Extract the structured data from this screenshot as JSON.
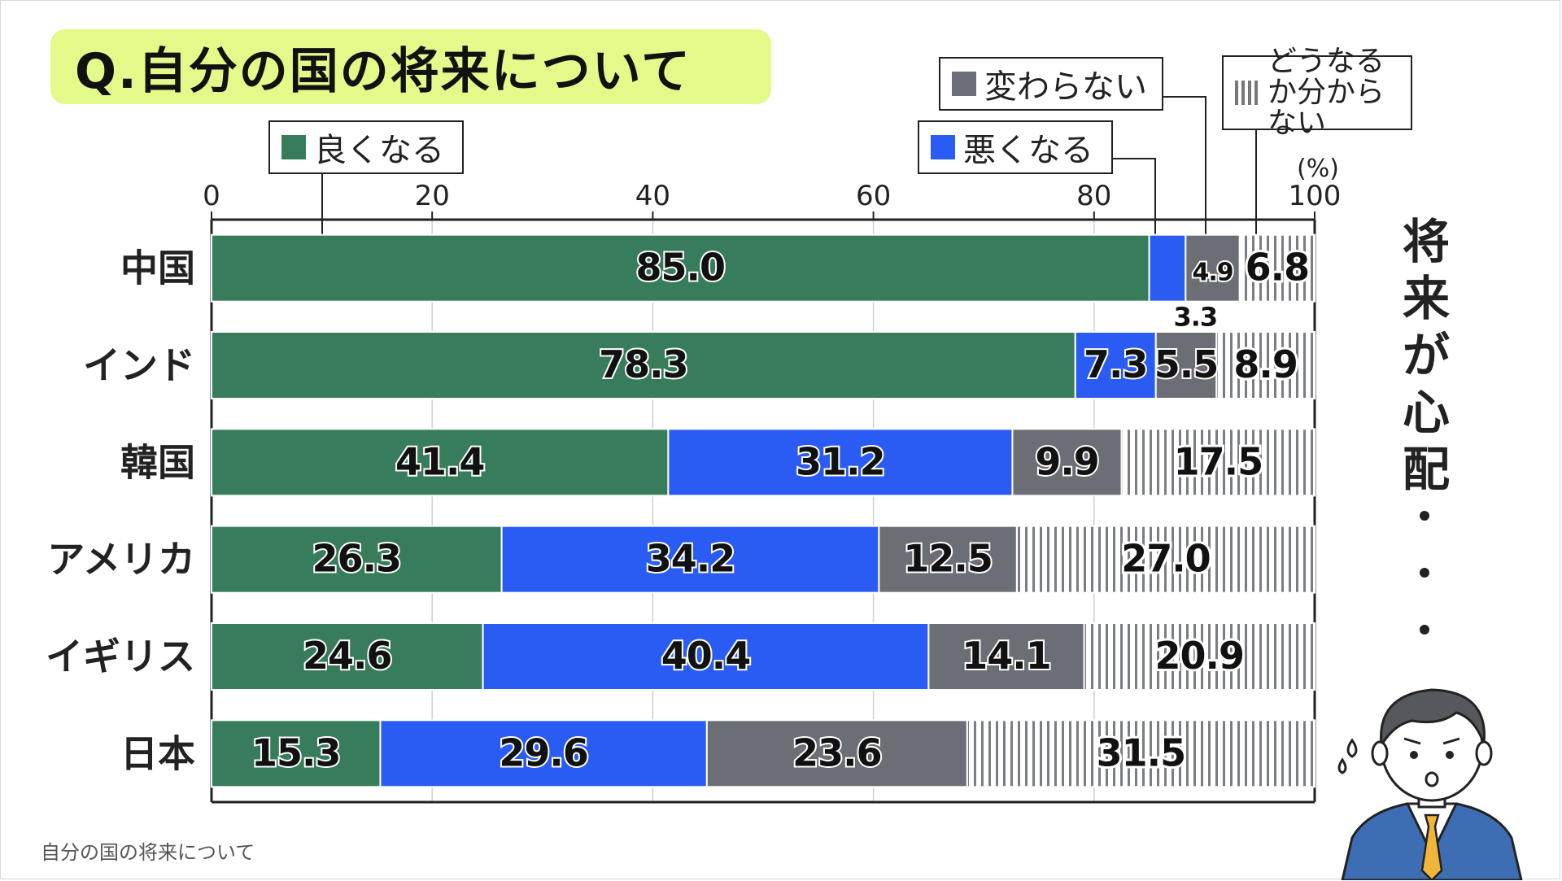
{
  "title": "Q.自分の国の将来について",
  "caption": "自分の国の将来について",
  "side_text": [
    "将",
    "来",
    "が",
    "心",
    "配"
  ],
  "unit": "(%)",
  "colors": {
    "good": "#387d5b",
    "bad": "#2a5cf4",
    "same": "#6b6f75",
    "unknown": "#ffffff",
    "title_bg": "#e3f98a"
  },
  "chart_data": {
    "type": "bar",
    "orientation": "horizontal",
    "stacked": true,
    "categories": [
      "中国",
      "インド",
      "韓国",
      "アメリカ",
      "イギリス",
      "日本"
    ],
    "series": [
      {
        "name": "良くなる",
        "values": [
          85.0,
          78.3,
          41.4,
          26.3,
          24.6,
          15.3
        ]
      },
      {
        "name": "悪くなる",
        "values": [
          3.3,
          7.3,
          31.2,
          34.2,
          40.4,
          29.6
        ]
      },
      {
        "name": "変わらない",
        "values": [
          4.9,
          5.5,
          9.9,
          12.5,
          14.1,
          23.6
        ]
      },
      {
        "name": "どうなるか分からない",
        "values": [
          6.8,
          8.9,
          17.5,
          27.0,
          20.9,
          31.5
        ]
      }
    ],
    "xlim": [
      0,
      100
    ],
    "ticks": [
      "0",
      "20",
      "40",
      "60",
      "80",
      "100"
    ],
    "grid": true,
    "title": "Q.自分の国の将来について"
  }
}
